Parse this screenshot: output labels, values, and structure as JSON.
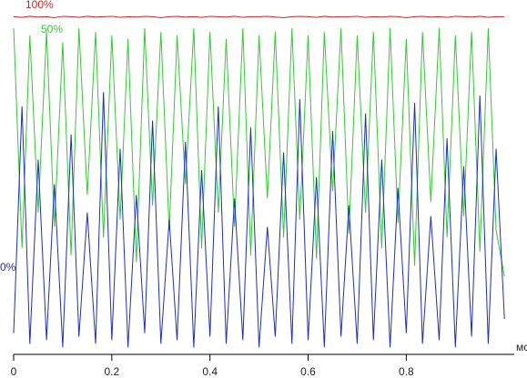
{
  "chart_data": {
    "type": "line",
    "x_label": "мс",
    "x": [
      0,
      0.017,
      0.033,
      0.05,
      0.067,
      0.083,
      0.1,
      0.117,
      0.133,
      0.15,
      0.167,
      0.183,
      0.2,
      0.217,
      0.233,
      0.25,
      0.267,
      0.283,
      0.3,
      0.317,
      0.333,
      0.35,
      0.367,
      0.383,
      0.4,
      0.417,
      0.433,
      0.45,
      0.467,
      0.483,
      0.5,
      0.517,
      0.533,
      0.55,
      0.567,
      0.583,
      0.6,
      0.617,
      0.633,
      0.65,
      0.667,
      0.683,
      0.7,
      0.717,
      0.733,
      0.75,
      0.767,
      0.783,
      0.8,
      0.817,
      0.833,
      0.85,
      0.867,
      0.883,
      0.9,
      0.917,
      0.933,
      0.95,
      0.967,
      0.983,
      1.0
    ],
    "series": [
      {
        "name": "100%",
        "color": "#d42020",
        "values": [
          95.3,
          95.1,
          95.4,
          95.2,
          95.3,
          95.0,
          95.4,
          95.3,
          95.1,
          95.4,
          95.2,
          95.3,
          95.4,
          95.1,
          95.3,
          95.2,
          95.4,
          95.3,
          95.0,
          95.3,
          95.4,
          95.2,
          95.3,
          95.1,
          95.4,
          95.3,
          95.2,
          95.4,
          95.1,
          95.3,
          95.3,
          95.4,
          95.2,
          95.0,
          95.3,
          95.4,
          95.3,
          95.1,
          95.4,
          95.2,
          95.3,
          95.3,
          95.4,
          95.1,
          95.3,
          95.2,
          95.4,
          95.3,
          95.0,
          95.3,
          95.4,
          95.2,
          95.3,
          95.1,
          95.4,
          95.3,
          95.2,
          95.4,
          95.1,
          95.3,
          95.3
        ]
      },
      {
        "name": "50%",
        "color": "#30cc30",
        "values": [
          92,
          30,
          90,
          40,
          91,
          36,
          88,
          28,
          92,
          45,
          91,
          33,
          90,
          38,
          89,
          26,
          92,
          42,
          91,
          35,
          90,
          48,
          92,
          30,
          91,
          40,
          89,
          36,
          92,
          28,
          90,
          44,
          91,
          33,
          92,
          38,
          90,
          27,
          91,
          46,
          92,
          34,
          90,
          40,
          91,
          30,
          92,
          37,
          89,
          25,
          91,
          43,
          92,
          33,
          90,
          39,
          91,
          29,
          92,
          35,
          22
        ]
      },
      {
        "name": "0%",
        "color": "#1a2ec8",
        "values": [
          6,
          70,
          3,
          55,
          4,
          48,
          2,
          62,
          5,
          40,
          3,
          74,
          4,
          58,
          2,
          45,
          6,
          66,
          3,
          38,
          4,
          60,
          2,
          52,
          5,
          70,
          3,
          44,
          4,
          64,
          2,
          36,
          5,
          57,
          3,
          72,
          4,
          50,
          2,
          63,
          5,
          42,
          3,
          68,
          4,
          55,
          2,
          47,
          6,
          71,
          3,
          39,
          4,
          61,
          2,
          53,
          5,
          73,
          3,
          58,
          10
        ]
      }
    ],
    "xlim": [
      0,
      1.02
    ],
    "xticks": [
      0,
      0.2,
      0.4,
      0.6,
      0.8
    ],
    "ylim": [
      0,
      100
    ]
  }
}
